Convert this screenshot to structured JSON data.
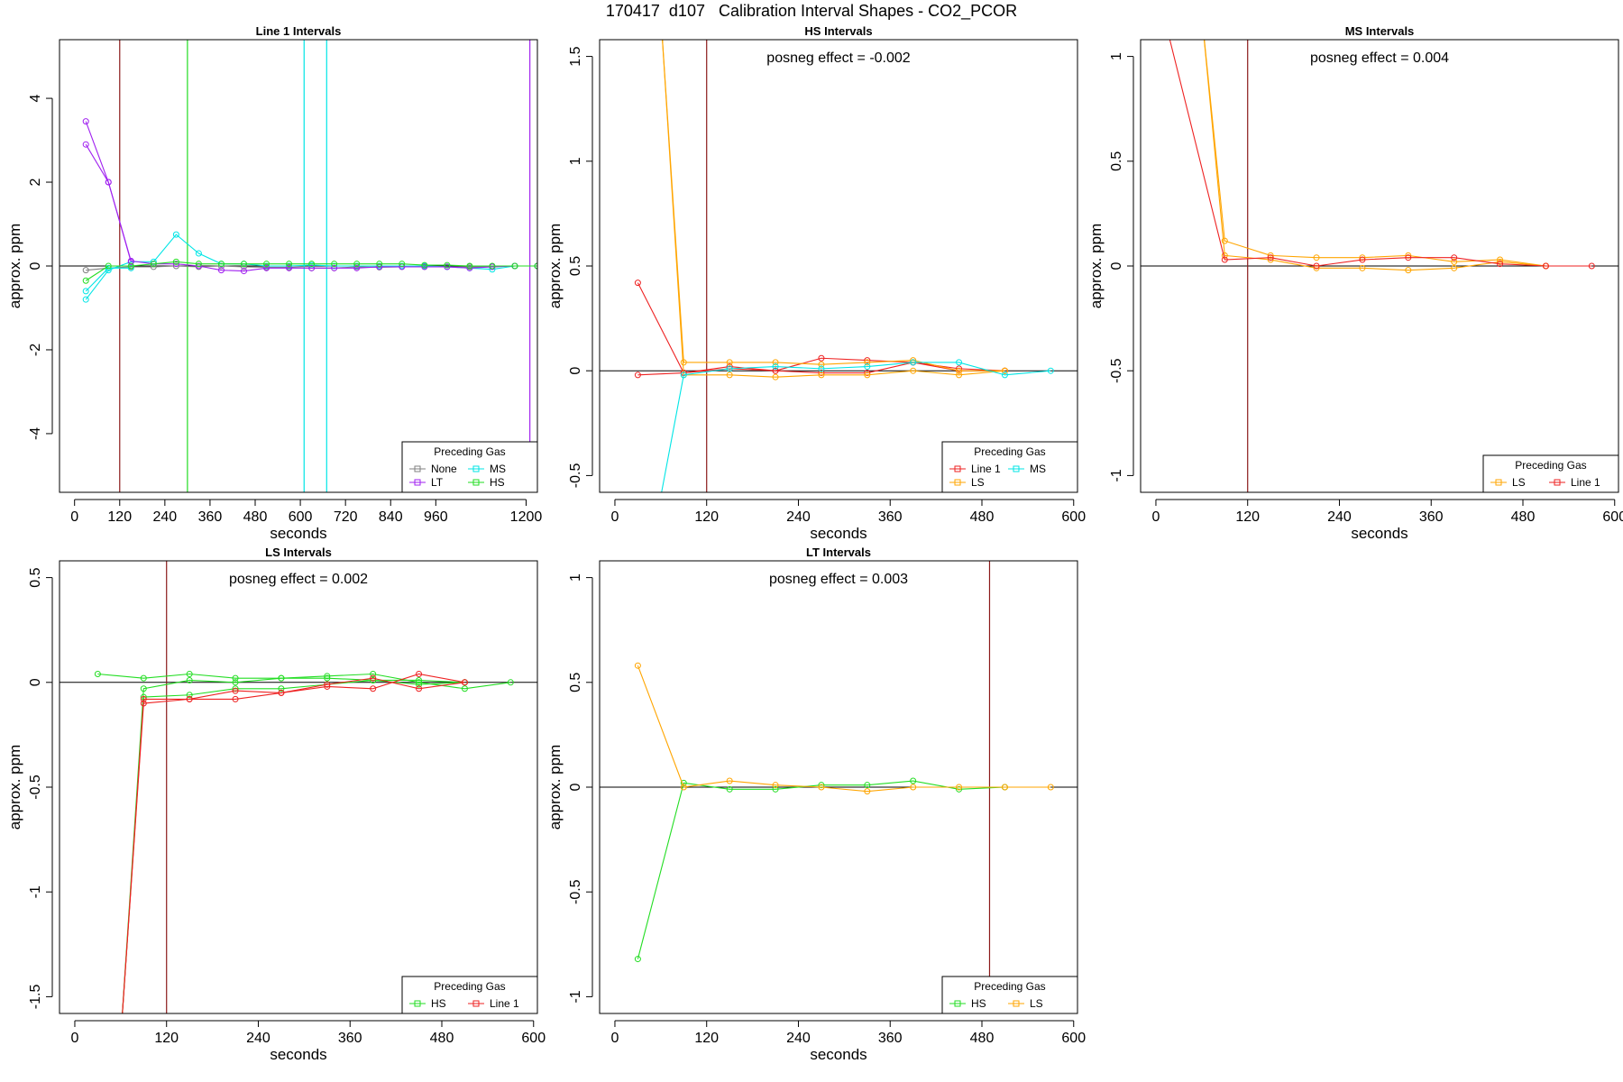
{
  "page": {
    "title": "170417  d107   Calibration Interval Shapes - CO2_PCOR"
  },
  "colors": {
    "None": "#808080",
    "MS": "#00e5e5",
    "LT": "#a020f0",
    "HS": "#22dd22",
    "Line 1": "#ee2222",
    "LS": "#ffa500",
    "marker_line": "#8b1a1a",
    "axis": "#000000"
  },
  "chart_data": [
    {
      "type": "line",
      "title": "Line 1 Intervals",
      "xlabel": "seconds",
      "ylabel": "approx. ppm",
      "xlim": [
        -40,
        1230
      ],
      "ylim": [
        -5.4,
        5.4
      ],
      "xticks": [
        0,
        120,
        240,
        360,
        480,
        600,
        720,
        840,
        960,
        1200
      ],
      "yticks": [
        -4,
        -2,
        0,
        2,
        4
      ],
      "zero_line": true,
      "annotation": "",
      "vlines": [
        {
          "x": 120,
          "color": "marker_line"
        },
        {
          "x": 300,
          "color": "HS"
        },
        {
          "x": 610,
          "color": "MS"
        },
        {
          "x": 670,
          "color": "MS"
        },
        {
          "x": 1210,
          "color": "LT"
        }
      ],
      "legend": {
        "title": "Preceding Gas",
        "position": "bottom-right",
        "columns": 2,
        "entries": [
          "None",
          "MS",
          "LT",
          "HS"
        ]
      },
      "series": [
        {
          "name": "None",
          "color": "None",
          "x": [
            30,
            90,
            150,
            210,
            270,
            330,
            390,
            450,
            510,
            570,
            630,
            690,
            750,
            810,
            870,
            930,
            990,
            1050,
            1110,
            1170,
            1230
          ],
          "y": [
            -0.1,
            -0.05,
            -0.02,
            -0.02,
            0.0,
            -0.02,
            0.0,
            -0.02,
            -0.03,
            -0.03,
            -0.05,
            -0.05,
            -0.02,
            -0.03,
            -0.02,
            -0.02,
            -0.02,
            -0.02,
            -0.02,
            0.0,
            0.0
          ]
        },
        {
          "name": "MS",
          "color": "MS",
          "x": [
            30,
            90,
            150,
            210,
            270,
            330,
            390,
            450,
            510,
            570,
            630,
            690,
            750,
            810,
            870,
            930,
            990,
            1050,
            1110,
            1170,
            1230
          ],
          "y": [
            -0.8,
            -0.1,
            0.1,
            0.1,
            0.75,
            0.3,
            0.05,
            0.05,
            0.0,
            0.0,
            0.02,
            0.0,
            0.0,
            0.0,
            0.0,
            0.0,
            -0.02,
            -0.05,
            -0.08,
            0.0,
            0.0
          ]
        },
        {
          "name": "MS",
          "color": "MS",
          "x": [
            30,
            90,
            150
          ],
          "y": [
            -0.6,
            -0.05,
            -0.05
          ]
        },
        {
          "name": "LT",
          "color": "LT",
          "x": [
            30,
            90,
            150,
            210,
            270,
            330,
            390,
            450,
            510,
            570,
            630,
            690,
            750,
            810,
            870,
            930,
            990,
            1050,
            1110,
            1170,
            1230
          ],
          "y": [
            3.45,
            2.0,
            0.12,
            0.05,
            0.05,
            0.0,
            -0.1,
            -0.12,
            -0.05,
            -0.05,
            -0.05,
            -0.05,
            -0.05,
            -0.02,
            -0.02,
            -0.02,
            -0.02,
            -0.05,
            -0.02,
            0.0,
            0.0
          ]
        },
        {
          "name": "LT",
          "color": "LT",
          "x": [
            30,
            90,
            150
          ],
          "y": [
            2.9,
            2.0,
            0.1
          ]
        },
        {
          "name": "HS",
          "color": "HS",
          "x": [
            30,
            90,
            150,
            210,
            270,
            330,
            390,
            450,
            510,
            570,
            630,
            690,
            750,
            810,
            870,
            930,
            990,
            1050,
            1110,
            1170,
            1230
          ],
          "y": [
            -0.35,
            0.0,
            0.0,
            0.05,
            0.1,
            0.05,
            0.05,
            0.05,
            0.05,
            0.05,
            0.05,
            0.05,
            0.05,
            0.05,
            0.05,
            0.02,
            0.02,
            0.0,
            0.0,
            0.0,
            0.0
          ]
        }
      ]
    },
    {
      "type": "line",
      "title": "HS Intervals",
      "xlabel": "seconds",
      "ylabel": "approx. ppm",
      "xlim": [
        -20,
        605
      ],
      "ylim": [
        -0.58,
        1.58
      ],
      "xticks": [
        0,
        120,
        240,
        360,
        480,
        600
      ],
      "yticks": [
        -0.5,
        0.0,
        0.5,
        1.0,
        1.5
      ],
      "zero_line": true,
      "annotation": "posneg effect = -0.002",
      "vlines": [
        {
          "x": 120,
          "color": "marker_line"
        }
      ],
      "legend": {
        "title": "Preceding Gas",
        "position": "bottom-right",
        "columns": 2,
        "entries": [
          "Line 1",
          "MS",
          "LS"
        ]
      },
      "series": [
        {
          "name": "Line 1",
          "color": "Line 1",
          "x": [
            30,
            90,
            150,
            210,
            270,
            330,
            390,
            450,
            510
          ],
          "y": [
            0.42,
            -0.01,
            0.01,
            0.0,
            0.06,
            0.05,
            0.04,
            0.01,
            0.0
          ]
        },
        {
          "name": "Line 1",
          "color": "Line 1",
          "x": [
            30,
            90,
            150,
            210,
            270,
            330,
            390,
            450,
            510
          ],
          "y": [
            -0.02,
            -0.01,
            0.02,
            0.0,
            -0.01,
            -0.01,
            0.04,
            0.0,
            0.0
          ]
        },
        {
          "name": "LS",
          "color": "LS",
          "x": [
            60,
            90,
            150,
            210,
            270,
            330,
            390,
            450,
            510
          ],
          "y": [
            1.7,
            0.04,
            0.04,
            0.04,
            0.03,
            0.04,
            0.05,
            0.0,
            0.0
          ]
        },
        {
          "name": "LS",
          "color": "LS",
          "x": [
            60,
            90,
            150,
            210,
            270,
            330,
            390,
            450,
            510
          ],
          "y": [
            1.7,
            -0.02,
            -0.02,
            -0.03,
            -0.02,
            -0.02,
            0.0,
            -0.02,
            0.0
          ]
        },
        {
          "name": "MS",
          "color": "MS",
          "x": [
            60,
            90,
            150,
            210,
            270,
            330,
            390,
            450,
            510,
            570
          ],
          "y": [
            -0.6,
            -0.02,
            0.01,
            0.02,
            0.01,
            0.02,
            0.04,
            0.04,
            -0.02,
            0.0
          ]
        }
      ]
    },
    {
      "type": "line",
      "title": "MS Intervals",
      "xlabel": "seconds",
      "ylabel": "approx. ppm",
      "xlim": [
        -20,
        605
      ],
      "ylim": [
        -1.08,
        1.08
      ],
      "xticks": [
        0,
        120,
        240,
        360,
        480,
        600
      ],
      "yticks": [
        -1.0,
        -0.5,
        0.0,
        0.5,
        1.0
      ],
      "zero_line": true,
      "annotation": "posneg effect = 0.004",
      "vlines": [
        {
          "x": 120,
          "color": "marker_line"
        }
      ],
      "legend": {
        "title": "Preceding Gas",
        "position": "bottom-right",
        "columns": 2,
        "entries": [
          "LS",
          "Line 1"
        ]
      },
      "series": [
        {
          "name": "LS",
          "color": "LS",
          "x": [
            60,
            90,
            150,
            210,
            270,
            330,
            390,
            450,
            510
          ],
          "y": [
            1.2,
            0.12,
            0.05,
            0.04,
            0.04,
            0.05,
            0.02,
            0.03,
            0.0
          ]
        },
        {
          "name": "LS",
          "color": "LS",
          "x": [
            60,
            90,
            150,
            210,
            270,
            330,
            390,
            450,
            510
          ],
          "y": [
            1.2,
            0.05,
            0.03,
            -0.01,
            -0.01,
            -0.02,
            -0.01,
            0.02,
            0.0
          ]
        },
        {
          "name": "Line 1",
          "color": "Line 1",
          "x": [
            10,
            90,
            150,
            210,
            270,
            330,
            390,
            450,
            510,
            570
          ],
          "y": [
            1.2,
            0.03,
            0.04,
            0.0,
            0.03,
            0.04,
            0.04,
            0.01,
            0.0,
            0.0
          ]
        }
      ]
    },
    {
      "type": "line",
      "title": "LS Intervals",
      "xlabel": "seconds",
      "ylabel": "approx. ppm",
      "xlim": [
        -20,
        605
      ],
      "ylim": [
        -1.58,
        0.58
      ],
      "xticks": [
        0,
        120,
        240,
        360,
        480,
        600
      ],
      "yticks": [
        -1.5,
        -1.0,
        -0.5,
        0.0,
        0.5
      ],
      "zero_line": true,
      "annotation": "posneg effect = 0.002",
      "vlines": [
        {
          "x": 120,
          "color": "marker_line"
        }
      ],
      "legend": {
        "title": "Preceding Gas",
        "position": "bottom-right",
        "columns": 2,
        "entries": [
          "HS",
          "Line 1"
        ]
      },
      "series": [
        {
          "name": "HS",
          "color": "HS",
          "x": [
            30,
            90,
            150,
            210,
            270,
            330,
            390,
            450,
            510,
            570
          ],
          "y": [
            0.04,
            0.02,
            0.04,
            0.02,
            0.02,
            0.03,
            0.04,
            0.0,
            -0.03,
            0.0
          ]
        },
        {
          "name": "HS",
          "color": "HS",
          "x": [
            60,
            90,
            150,
            210,
            270,
            330,
            390,
            450,
            510
          ],
          "y": [
            -1.7,
            -0.03,
            0.01,
            0.0,
            0.02,
            0.02,
            0.01,
            0.01,
            0.0
          ]
        },
        {
          "name": "HS",
          "color": "HS",
          "x": [
            60,
            90,
            150,
            210,
            270,
            330,
            390,
            450,
            510
          ],
          "y": [
            -1.7,
            -0.07,
            -0.06,
            -0.03,
            -0.03,
            -0.01,
            0.01,
            -0.01,
            0.0
          ]
        },
        {
          "name": "Line 1",
          "color": "Line 1",
          "x": [
            60,
            90,
            150,
            210,
            270,
            330,
            390,
            450,
            510
          ],
          "y": [
            -1.7,
            -0.1,
            -0.08,
            -0.08,
            -0.05,
            -0.02,
            -0.03,
            0.04,
            0.0
          ]
        },
        {
          "name": "Line 1",
          "color": "Line 1",
          "x": [
            60,
            90,
            150,
            210,
            270,
            330,
            390,
            450,
            510
          ],
          "y": [
            -1.7,
            -0.08,
            -0.08,
            -0.04,
            -0.05,
            -0.01,
            0.02,
            -0.03,
            0.0
          ]
        }
      ]
    },
    {
      "type": "line",
      "title": "LT Intervals",
      "xlabel": "seconds",
      "ylabel": "approx. ppm",
      "xlim": [
        -20,
        605
      ],
      "ylim": [
        -1.08,
        1.08
      ],
      "xticks": [
        0,
        120,
        240,
        360,
        480,
        600
      ],
      "yticks": [
        -1.0,
        -0.5,
        0.0,
        0.5,
        1.0
      ],
      "zero_line": true,
      "annotation": "posneg effect = 0.003",
      "vlines": [
        {
          "x": 490,
          "color": "marker_line"
        }
      ],
      "legend": {
        "title": "Preceding Gas",
        "position": "bottom-right",
        "columns": 2,
        "entries": [
          "HS",
          "LS"
        ]
      },
      "series": [
        {
          "name": "HS",
          "color": "HS",
          "x": [
            30,
            90,
            150,
            210,
            270,
            330,
            390,
            450,
            510
          ],
          "y": [
            -0.82,
            0.02,
            -0.01,
            -0.01,
            0.01,
            0.01,
            0.03,
            -0.01,
            0.0
          ]
        },
        {
          "name": "LS",
          "color": "LS",
          "x": [
            30,
            90,
            150,
            210,
            270,
            330,
            390,
            450,
            510,
            570
          ],
          "y": [
            0.58,
            0.0,
            0.03,
            0.01,
            0.0,
            -0.02,
            0.0,
            0.0,
            0.0,
            0.0
          ]
        }
      ]
    }
  ]
}
